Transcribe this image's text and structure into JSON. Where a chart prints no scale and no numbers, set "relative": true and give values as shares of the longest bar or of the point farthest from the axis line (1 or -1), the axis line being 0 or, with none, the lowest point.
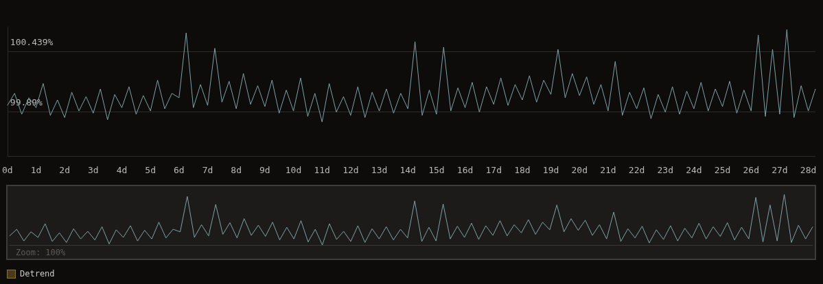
{
  "chart_data": [
    {
      "type": "line",
      "x": [
        0,
        0.25,
        0.5,
        0.75,
        1,
        1.25,
        1.5,
        1.75,
        2,
        2.25,
        2.5,
        2.75,
        3,
        3.25,
        3.5,
        3.75,
        4,
        4.25,
        4.5,
        4.75,
        5,
        5.25,
        5.5,
        5.75,
        6,
        6.25,
        6.5,
        6.75,
        7,
        7.25,
        7.5,
        7.75,
        8,
        8.25,
        8.5,
        8.75,
        9,
        9.25,
        9.5,
        9.75,
        10,
        10.25,
        10.5,
        10.75,
        11,
        11.25,
        11.5,
        11.75,
        12,
        12.25,
        12.5,
        12.75,
        13,
        13.25,
        13.5,
        13.75,
        14,
        14.25,
        14.5,
        14.75,
        15,
        15.25,
        15.5,
        15.75,
        16,
        16.25,
        16.5,
        16.75,
        17,
        17.25,
        17.5,
        17.75,
        18,
        18.25,
        18.5,
        18.75,
        19,
        19.25,
        19.5,
        19.75,
        20,
        20.25,
        20.5,
        20.75,
        21,
        21.25,
        21.5,
        21.75,
        22,
        22.25,
        22.5,
        22.75,
        23,
        23.25,
        23.5,
        23.75,
        24,
        24.25,
        24.5,
        24.75,
        25,
        25.25,
        25.5,
        25.75,
        26,
        26.25,
        26.5,
        26.75,
        27,
        27.25,
        27.5,
        27.75,
        28,
        28.25
      ],
      "series": [
        {
          "color": "#7fa2a8",
          "values": [
            99.95,
            100.06,
            99.87,
            100.02,
            99.93,
            100.15,
            99.86,
            100.0,
            99.84,
            100.07,
            99.9,
            100.03,
            99.88,
            100.1,
            99.82,
            100.05,
            99.93,
            100.12,
            99.87,
            100.04,
            99.9,
            100.18,
            99.92,
            100.06,
            100.02,
            100.61,
            99.93,
            100.14,
            99.95,
            100.47,
            99.98,
            100.17,
            99.92,
            100.24,
            99.96,
            100.13,
            99.94,
            100.18,
            99.88,
            100.09,
            99.9,
            100.2,
            99.85,
            100.06,
            99.8,
            100.15,
            99.89,
            100.03,
            99.86,
            100.12,
            99.84,
            100.07,
            99.9,
            100.1,
            99.88,
            100.06,
            99.92,
            100.53,
            99.86,
            100.09,
            99.87,
            100.48,
            99.9,
            100.11,
            99.93,
            100.16,
            99.89,
            100.12,
            99.96,
            100.2,
            99.95,
            100.14,
            100.0,
            100.22,
            99.98,
            100.18,
            100.05,
            100.46,
            100.02,
            100.24,
            100.04,
            100.21,
            99.96,
            100.14,
            99.9,
            100.35,
            99.86,
            100.07,
            99.92,
            100.11,
            99.83,
            100.05,
            99.89,
            100.12,
            99.87,
            100.08,
            99.92,
            100.16,
            99.9,
            100.1,
            99.94,
            100.17,
            99.88,
            100.09,
            99.9,
            100.59,
            99.85,
            100.46,
            99.87,
            100.64,
            99.84,
            100.13,
            99.9,
            100.1
          ]
        }
      ],
      "xlim": [
        0,
        28.25
      ],
      "xticks": [
        {
          "value": 0,
          "label": "0d"
        },
        {
          "value": 1,
          "label": "1d"
        },
        {
          "value": 2,
          "label": "2d"
        },
        {
          "value": 3,
          "label": "3d"
        },
        {
          "value": 4,
          "label": "4d"
        },
        {
          "value": 5,
          "label": "5d"
        },
        {
          "value": 6,
          "label": "6d"
        },
        {
          "value": 7,
          "label": "7d"
        },
        {
          "value": 8,
          "label": "8d"
        },
        {
          "value": 9,
          "label": "9d"
        },
        {
          "value": 10,
          "label": "10d"
        },
        {
          "value": 11,
          "label": "11d"
        },
        {
          "value": 12,
          "label": "12d"
        },
        {
          "value": 13,
          "label": "13d"
        },
        {
          "value": 14,
          "label": "14d"
        },
        {
          "value": 15,
          "label": "15d"
        },
        {
          "value": 16,
          "label": "16d"
        },
        {
          "value": 17,
          "label": "17d"
        },
        {
          "value": 18,
          "label": "18d"
        },
        {
          "value": 19,
          "label": "19d"
        },
        {
          "value": 20,
          "label": "20d"
        },
        {
          "value": 21,
          "label": "21d"
        },
        {
          "value": 22,
          "label": "22d"
        },
        {
          "value": 23,
          "label": "23d"
        },
        {
          "value": 24,
          "label": "24d"
        },
        {
          "value": 25,
          "label": "25d"
        },
        {
          "value": 26,
          "label": "26d"
        },
        {
          "value": 27,
          "label": "27d"
        },
        {
          "value": 28,
          "label": "28d"
        }
      ],
      "ylim": [
        99.49,
        100.66
      ],
      "yticks": [
        {
          "value": 99.49,
          "label": null
        },
        {
          "value": 99.89,
          "label": "99.89%"
        },
        {
          "value": 100.439,
          "label": "100.439%"
        }
      ],
      "grid": "y",
      "marker": "none",
      "line_style": "solid"
    },
    {
      "type": "line",
      "categories": [
        null,
        null,
        null,
        null,
        null,
        null,
        null,
        null,
        null,
        null,
        null,
        null,
        null,
        null,
        null,
        null,
        null,
        null,
        null,
        null,
        null,
        null,
        null,
        null,
        null,
        null,
        null,
        null,
        null,
        null,
        null,
        null,
        null,
        null,
        null,
        null,
        null,
        null,
        null,
        null,
        null,
        null,
        null,
        null,
        null,
        null,
        null,
        null,
        null,
        null,
        null,
        null,
        null,
        null,
        null,
        null,
        null,
        null,
        null,
        null,
        null,
        null,
        null,
        null,
        null,
        null,
        null,
        null,
        null,
        null,
        null,
        null,
        null,
        null,
        null,
        null,
        null,
        null,
        null,
        null,
        null,
        null,
        null,
        null,
        null,
        null,
        null,
        null,
        null,
        null,
        null,
        null,
        null,
        null,
        null,
        null,
        null,
        null,
        null,
        null,
        null,
        null,
        null,
        null,
        null,
        null,
        null,
        null,
        null,
        null,
        null,
        null,
        null,
        null
      ],
      "series": [
        {
          "color": "#7fa2a8",
          "values": [
            0.18,
            0.31,
            0.08,
            0.26,
            0.15,
            0.42,
            0.07,
            0.24,
            0.05,
            0.32,
            0.12,
            0.27,
            0.1,
            0.36,
            0.02,
            0.3,
            0.15,
            0.38,
            0.08,
            0.29,
            0.12,
            0.45,
            0.14,
            0.31,
            0.26,
            0.96,
            0.15,
            0.4,
            0.18,
            0.8,
            0.21,
            0.44,
            0.14,
            0.52,
            0.19,
            0.39,
            0.17,
            0.45,
            0.1,
            0.35,
            0.12,
            0.48,
            0.06,
            0.31,
            0,
            0.42,
            0.11,
            0.27,
            0.07,
            0.38,
            0.05,
            0.32,
            0.12,
            0.36,
            0.1,
            0.31,
            0.14,
            0.87,
            0.07,
            0.35,
            0.08,
            0.81,
            0.12,
            0.37,
            0.15,
            0.43,
            0.11,
            0.38,
            0.19,
            0.48,
            0.18,
            0.4,
            0.24,
            0.5,
            0.21,
            0.45,
            0.3,
            0.79,
            0.26,
            0.52,
            0.29,
            0.49,
            0.19,
            0.4,
            0.12,
            0.65,
            0.07,
            0.32,
            0.14,
            0.37,
            0.04,
            0.3,
            0.11,
            0.38,
            0.08,
            0.33,
            0.14,
            0.43,
            0.12,
            0.36,
            0.17,
            0.44,
            0.1,
            0.35,
            0.12,
            0.94,
            0.06,
            0.79,
            0.08,
            1,
            0.05,
            0.39,
            0.12,
            0.36
          ]
        }
      ],
      "relative": true,
      "marker": "none",
      "line_style": "solid",
      "annotations": [
        "Zoom: 100%",
        "Detrend"
      ]
    }
  ]
}
